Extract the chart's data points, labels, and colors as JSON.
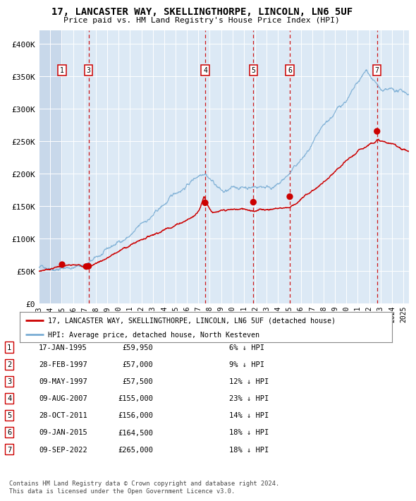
{
  "title": "17, LANCASTER WAY, SKELLINGTHORPE, LINCOLN, LN6 5UF",
  "subtitle": "Price paid vs. HM Land Registry's House Price Index (HPI)",
  "background_color": "#dce9f5",
  "plot_bg_color": "#dce9f5",
  "hatch_region_end_year": 1995.04,
  "xlim": [
    1993.0,
    2025.5
  ],
  "ylim": [
    0,
    420000
  ],
  "yticks": [
    0,
    50000,
    100000,
    150000,
    200000,
    250000,
    300000,
    350000,
    400000
  ],
  "ytick_labels": [
    "£0",
    "£50K",
    "£100K",
    "£150K",
    "£200K",
    "£250K",
    "£300K",
    "£350K",
    "£400K"
  ],
  "xtick_years": [
    1993,
    1994,
    1995,
    1996,
    1997,
    1998,
    1999,
    2000,
    2001,
    2002,
    2003,
    2004,
    2005,
    2006,
    2007,
    2008,
    2009,
    2010,
    2011,
    2012,
    2013,
    2014,
    2015,
    2016,
    2017,
    2018,
    2019,
    2020,
    2021,
    2022,
    2023,
    2024,
    2025
  ],
  "sale_dates_num": [
    1995.04,
    1997.16,
    1997.36,
    2007.6,
    2011.83,
    2015.03,
    2022.69
  ],
  "sale_prices": [
    59950,
    57000,
    57500,
    155000,
    156000,
    164500,
    265000
  ],
  "sale_labels": [
    "1",
    "2",
    "3",
    "4",
    "5",
    "6",
    "7"
  ],
  "sale_color": "#cc0000",
  "hpi_color": "#7aadd4",
  "legend_entries": [
    "17, LANCASTER WAY, SKELLINGTHORPE, LINCOLN, LN6 5UF (detached house)",
    "HPI: Average price, detached house, North Kesteven"
  ],
  "table_rows": [
    [
      "1",
      "17-JAN-1995",
      "£59,950",
      "6% ↓ HPI"
    ],
    [
      "2",
      "28-FEB-1997",
      "£57,000",
      "9% ↓ HPI"
    ],
    [
      "3",
      "09-MAY-1997",
      "£57,500",
      "12% ↓ HPI"
    ],
    [
      "4",
      "09-AUG-2007",
      "£155,000",
      "23% ↓ HPI"
    ],
    [
      "5",
      "28-OCT-2011",
      "£156,000",
      "14% ↓ HPI"
    ],
    [
      "6",
      "09-JAN-2015",
      "£164,500",
      "18% ↓ HPI"
    ],
    [
      "7",
      "09-SEP-2022",
      "£265,000",
      "18% ↓ HPI"
    ]
  ],
  "footer_text": "Contains HM Land Registry data © Crown copyright and database right 2024.\nThis data is licensed under the Open Government Licence v3.0.",
  "dashed_line_dates": [
    1997.36,
    2007.6,
    2011.83,
    2015.03,
    2022.69
  ],
  "box_label_dates": [
    1995.04,
    1997.36,
    2007.6,
    2011.83,
    2015.03,
    2022.69
  ],
  "box_labels": [
    "1",
    "3",
    "4",
    "5",
    "6",
    "7"
  ]
}
